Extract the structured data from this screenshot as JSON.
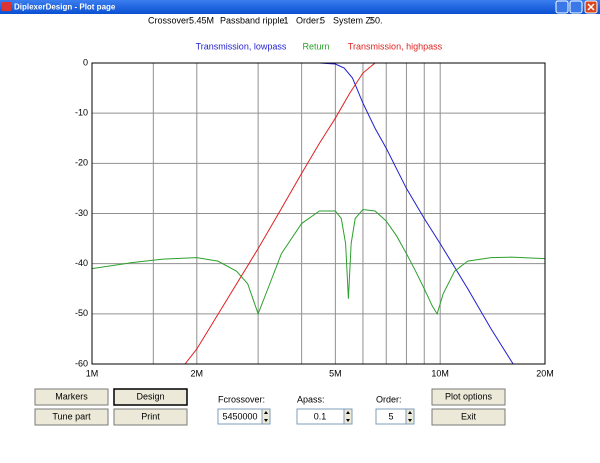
{
  "window": {
    "title": "DiplexerDesign - Plot page"
  },
  "header": {
    "crossover_label": "Crossover:",
    "crossover_value": "5.45M",
    "ripple_label": "Passband ripple:",
    "ripple_value": ".1",
    "order_label": "Order:",
    "order_value": "5",
    "systemz_label": "System Z:",
    "systemz_value": "50."
  },
  "chart_data": {
    "type": "line",
    "xscale": "log",
    "xlim": [
      1,
      20
    ],
    "xticks": [
      {
        "value": 1,
        "label": "1M"
      },
      {
        "value": 2,
        "label": "2M"
      },
      {
        "value": 5,
        "label": "5M"
      },
      {
        "value": 10,
        "label": "10M"
      },
      {
        "value": 20,
        "label": "20M"
      }
    ],
    "x_minor_grid": [
      1.5,
      3,
      4,
      6,
      7,
      8,
      9
    ],
    "ylim": [
      -60,
      0
    ],
    "yticks": [
      0,
      -10,
      -20,
      -30,
      -40,
      -50,
      -60
    ],
    "grid": true,
    "series": [
      {
        "name": "Transmission, lowpass",
        "color": "#1f1fd0",
        "x": [
          1,
          2,
          3,
          4,
          4.5,
          5,
          5.3,
          5.6,
          6,
          6.5,
          7,
          8,
          9,
          10,
          12,
          14,
          16.2
        ],
        "values": [
          0,
          0,
          0,
          0,
          0,
          -0.2,
          -1,
          -3,
          -8,
          -13,
          -17,
          -25,
          -31,
          -36,
          -45,
          -53,
          -60
        ]
      },
      {
        "name": "Return",
        "color": "#2ca02c",
        "x": [
          1,
          1.3,
          1.6,
          2,
          2.3,
          2.6,
          2.8,
          3,
          3.2,
          3.5,
          4,
          4.5,
          5,
          5.2,
          5.35,
          5.45,
          5.55,
          5.7,
          6,
          6.5,
          7,
          7.5,
          8,
          8.5,
          9,
          9.5,
          9.8,
          10.2,
          11,
          12,
          14,
          16,
          20
        ],
        "values": [
          -41,
          -39.8,
          -39.1,
          -38.8,
          -39.5,
          -41.5,
          -44,
          -50,
          -45,
          -38,
          -32,
          -29.5,
          -29.5,
          -31,
          -36,
          -47,
          -36,
          -31,
          -29.2,
          -29.5,
          -31.5,
          -34.5,
          -38,
          -41.5,
          -45,
          -48.5,
          -50,
          -46,
          -41.5,
          -39.5,
          -38.8,
          -38.7,
          -39
        ]
      },
      {
        "name": "Transmission, highpass",
        "color": "#e02020",
        "x": [
          1.85,
          2,
          2.5,
          3,
          3.5,
          4,
          4.5,
          5,
          5.5,
          6,
          6.5
        ],
        "values": [
          -60,
          -57,
          -46,
          -37,
          -29,
          -22,
          -16,
          -11,
          -6,
          -2,
          0
        ]
      }
    ]
  },
  "controls": {
    "markers": "Markers",
    "design": "Design",
    "tune_part": "Tune part",
    "print": "Print",
    "fcrossover_label": "Fcrossover:",
    "fcrossover_value": "5450000",
    "apass_label": "Apass:",
    "apass_value": "0.1",
    "order_label": "Order:",
    "order_value": "5",
    "plot_options": "Plot options",
    "exit": "Exit"
  }
}
